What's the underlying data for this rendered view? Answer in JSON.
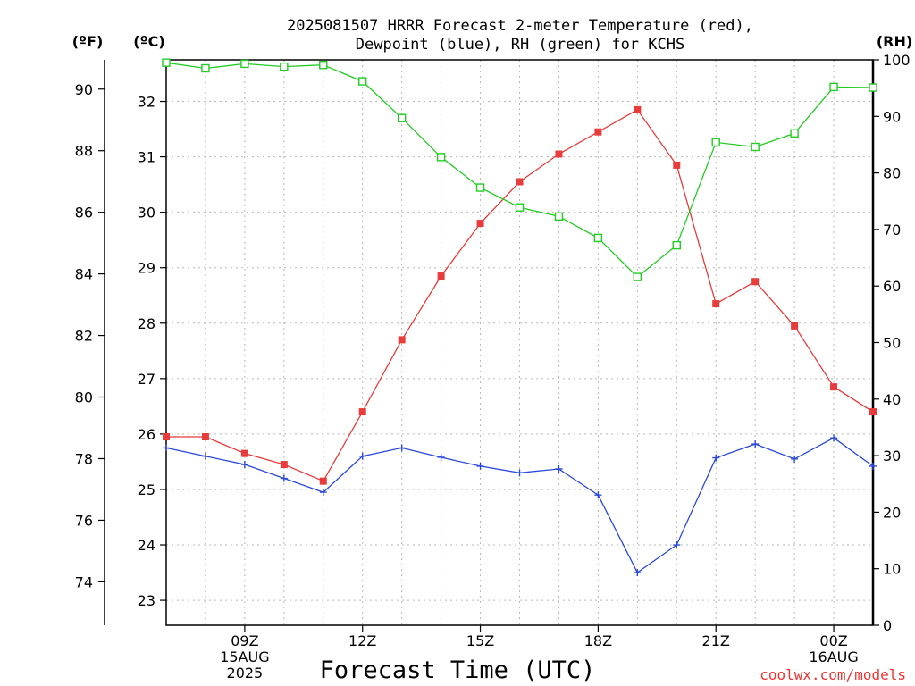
{
  "chart_data": {
    "type": "line",
    "title_line1": "2025081507 HRRR Forecast 2-meter Temperature (red),",
    "title_line2": "Dewpoint (blue), RH (green) for KCHS",
    "xlabel": "Forecast Time (UTC)",
    "credit": "coolwx.com/models",
    "units": {
      "fahrenheit": "(ºF)",
      "celsius": "(ºC)",
      "rh": "(RH)"
    },
    "x_hours_utc": [
      7,
      8,
      9,
      10,
      11,
      12,
      13,
      14,
      15,
      16,
      17,
      18,
      19,
      20,
      21,
      22,
      23,
      24,
      25
    ],
    "xlim": [
      7,
      25
    ],
    "x_ticks": [
      {
        "hour": 9,
        "lines": [
          "09Z",
          "15AUG",
          "2025"
        ]
      },
      {
        "hour": 12,
        "lines": [
          "12Z"
        ]
      },
      {
        "hour": 15,
        "lines": [
          "15Z"
        ]
      },
      {
        "hour": 18,
        "lines": [
          "18Z"
        ]
      },
      {
        "hour": 21,
        "lines": [
          "21Z"
        ]
      },
      {
        "hour": 24,
        "lines": [
          "00Z",
          "16AUG"
        ]
      }
    ],
    "celsius_axis": {
      "ylim": [
        22.55,
        32.75
      ],
      "ticks": [
        23,
        24,
        25,
        26,
        27,
        28,
        29,
        30,
        31,
        32
      ]
    },
    "fahrenheit_axis": {
      "ticks": [
        74,
        76,
        78,
        80,
        82,
        84,
        86,
        88,
        90
      ]
    },
    "rh_axis": {
      "ylim": [
        0,
        100
      ],
      "ticks": [
        0,
        10,
        20,
        30,
        40,
        50,
        60,
        70,
        80,
        90,
        100
      ]
    },
    "series": [
      {
        "key": "temperature",
        "color": "#e83c3c",
        "marker": "filled-square",
        "axis": "celsius",
        "values": [
          25.95,
          25.95,
          25.65,
          25.45,
          25.15,
          26.4,
          27.7,
          28.85,
          29.8,
          30.55,
          31.05,
          31.45,
          31.85,
          30.85,
          28.35,
          28.75,
          27.95,
          26.85,
          26.4
        ]
      },
      {
        "key": "dewpoint",
        "color": "#2c48d8",
        "marker": "plus",
        "axis": "celsius",
        "values": [
          25.75,
          25.6,
          25.45,
          25.2,
          24.95,
          25.6,
          25.75,
          25.58,
          25.42,
          25.3,
          25.37,
          24.9,
          23.5,
          24.0,
          25.57,
          25.82,
          25.55,
          25.93,
          25.42
        ]
      },
      {
        "key": "rh",
        "color": "#22cc22",
        "marker": "open-square",
        "axis": "rh",
        "values": [
          99.5,
          98.5,
          99.3,
          98.8,
          99.1,
          96.2,
          89.7,
          82.8,
          77.4,
          73.9,
          72.3,
          68.5,
          61.6,
          67.2,
          85.4,
          84.6,
          87.0,
          95.2,
          95.1
        ]
      }
    ]
  }
}
